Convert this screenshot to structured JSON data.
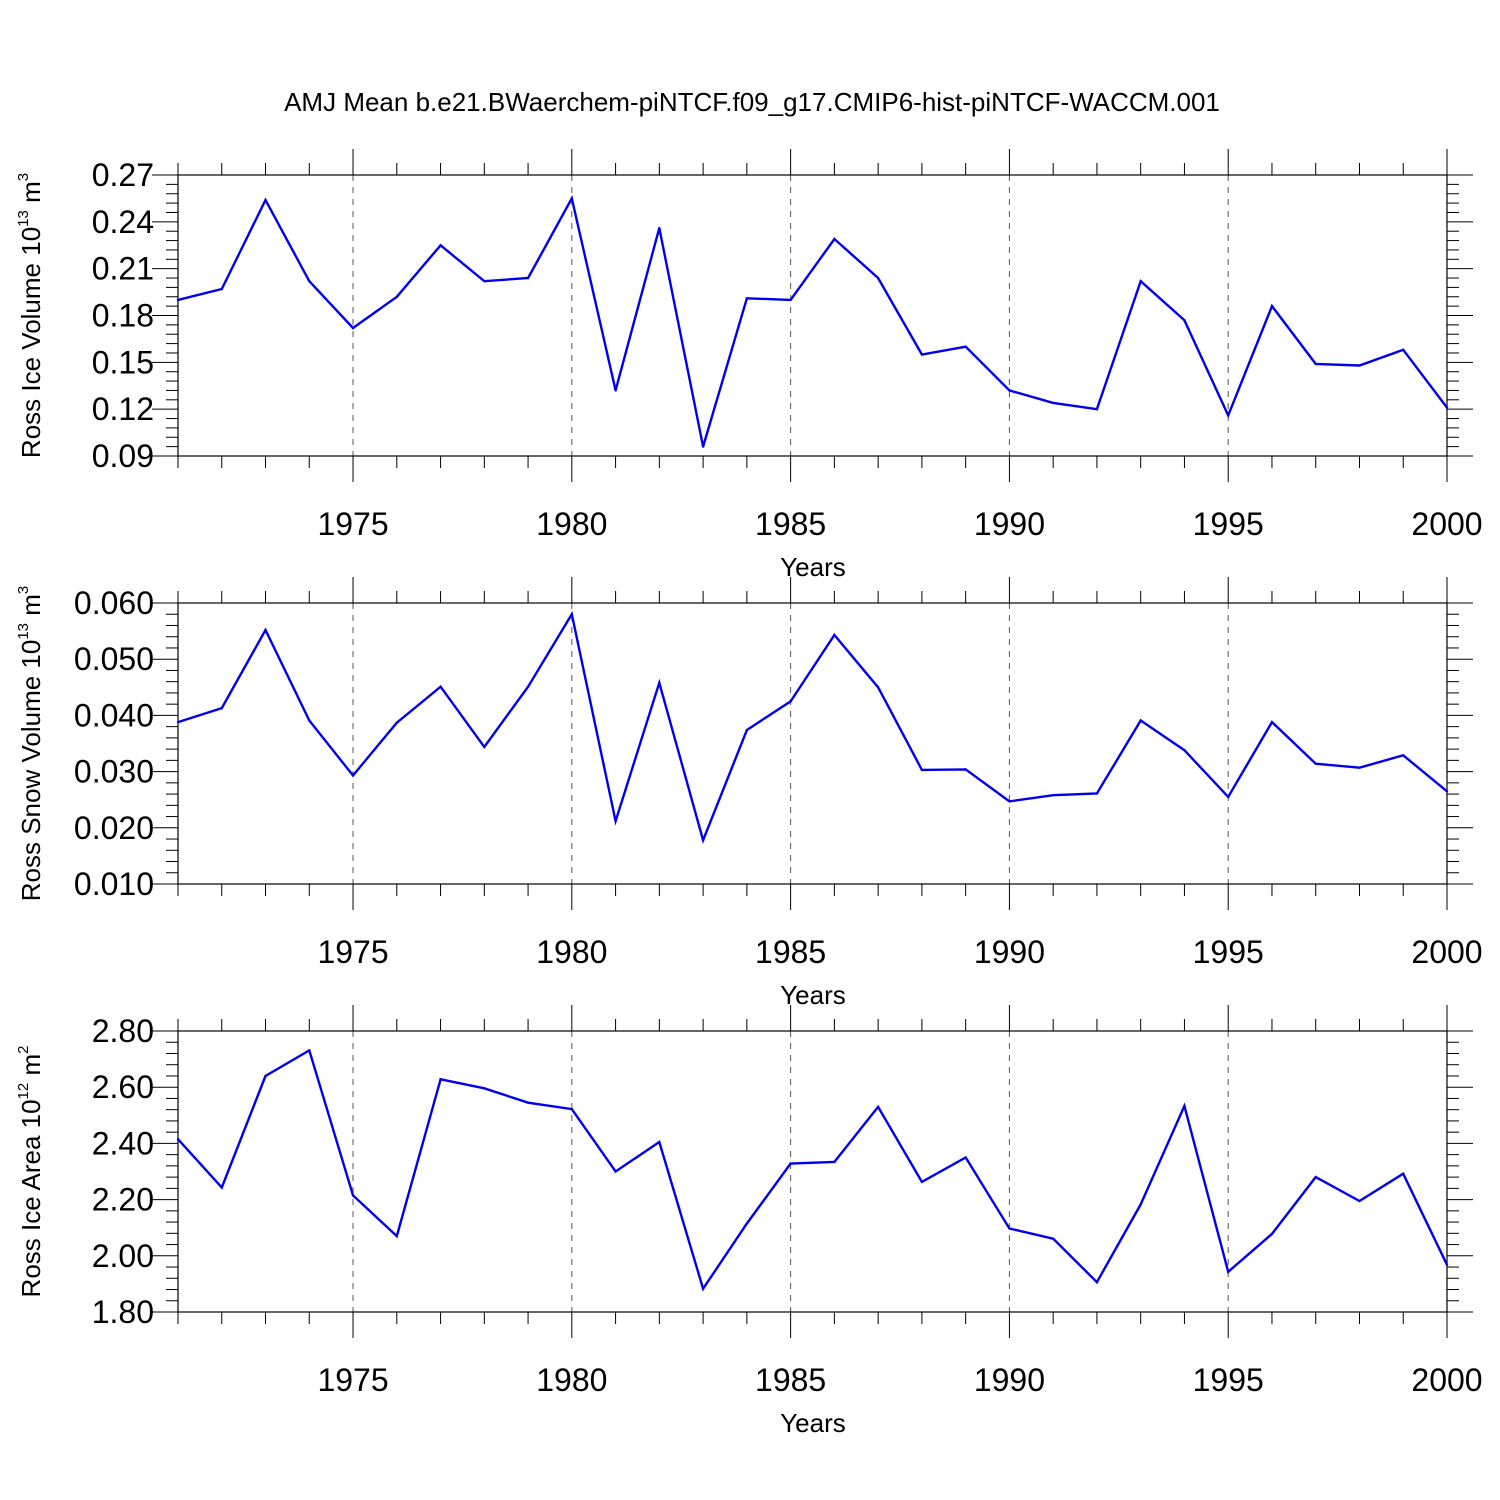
{
  "title": "AMJ Mean b.e21.BWaerchem-piNTCF.f09_g17.CMIP6-hist-piNTCF-WACCM.001",
  "chart_data": [
    {
      "type": "line",
      "title": "",
      "xlabel": "Years",
      "ylabel": {
        "base": "Ross Ice Volume 10",
        "sup1": "13",
        "mid": " m",
        "sup2": "3"
      },
      "xlim": [
        1971,
        2000
      ],
      "ylim": [
        0.09,
        0.27
      ],
      "yticks": [
        "0.09",
        "0.12",
        "0.15",
        "0.18",
        "0.21",
        "0.24",
        "0.27"
      ],
      "xticks": [
        "1975",
        "1980",
        "1985",
        "1990",
        "1995",
        "2000"
      ],
      "grid": "vertical dashed at major x ticks",
      "line_color": "#0000ee",
      "x": [
        1971,
        1972,
        1973,
        1974,
        1975,
        1976,
        1977,
        1978,
        1979,
        1980,
        1981,
        1982,
        1983,
        1984,
        1985,
        1986,
        1987,
        1988,
        1989,
        1990,
        1991,
        1992,
        1993,
        1994,
        1995,
        1996,
        1997,
        1998,
        1999,
        2000
      ],
      "values": [
        0.19,
        0.197,
        0.254,
        0.202,
        0.172,
        0.192,
        0.225,
        0.202,
        0.204,
        0.255,
        0.132,
        0.236,
        0.096,
        0.191,
        0.19,
        0.229,
        0.204,
        0.155,
        0.16,
        0.132,
        0.124,
        0.12,
        0.202,
        0.177,
        0.116,
        0.186,
        0.149,
        0.148,
        0.158,
        0.121
      ]
    },
    {
      "type": "line",
      "title": "",
      "xlabel": "Years",
      "ylabel": {
        "base": "Ross Snow Volume 10",
        "sup1": "13",
        "mid": " m",
        "sup2": "3"
      },
      "xlim": [
        1971,
        2000
      ],
      "ylim": [
        0.01,
        0.06
      ],
      "yticks": [
        "0.010",
        "0.020",
        "0.030",
        "0.040",
        "0.050",
        "0.060"
      ],
      "xticks": [
        "1975",
        "1980",
        "1985",
        "1990",
        "1995",
        "2000"
      ],
      "grid": "vertical dashed at major x ticks",
      "line_color": "#0000ee",
      "x": [
        1971,
        1972,
        1973,
        1974,
        1975,
        1976,
        1977,
        1978,
        1979,
        1980,
        1981,
        1982,
        1983,
        1984,
        1985,
        1986,
        1987,
        1988,
        1989,
        1990,
        1991,
        1992,
        1993,
        1994,
        1995,
        1996,
        1997,
        1998,
        1999,
        2000
      ],
      "values": [
        0.0388,
        0.0413,
        0.0552,
        0.0391,
        0.0293,
        0.0387,
        0.0451,
        0.0344,
        0.0451,
        0.058,
        0.0212,
        0.0458,
        0.0178,
        0.0374,
        0.0425,
        0.0543,
        0.045,
        0.0303,
        0.0304,
        0.0247,
        0.0258,
        0.0261,
        0.0391,
        0.0338,
        0.0255,
        0.0388,
        0.0314,
        0.0307,
        0.0329,
        0.0265
      ]
    },
    {
      "type": "line",
      "title": "",
      "xlabel": "Years",
      "ylabel": {
        "base": "Ross Ice Area 10",
        "sup1": "12",
        "mid": " m",
        "sup2": "2"
      },
      "xlim": [
        1971,
        2000
      ],
      "ylim": [
        1.8,
        2.8
      ],
      "yticks": [
        "1.80",
        "2.00",
        "2.20",
        "2.40",
        "2.60",
        "2.80"
      ],
      "xticks": [
        "1975",
        "1980",
        "1985",
        "1990",
        "1995",
        "2000"
      ],
      "grid": "vertical dashed at major x ticks",
      "line_color": "#0000ee",
      "x": [
        1971,
        1972,
        1973,
        1974,
        1975,
        1976,
        1977,
        1978,
        1979,
        1980,
        1981,
        1982,
        1983,
        1984,
        1985,
        1986,
        1987,
        1988,
        1989,
        1990,
        1991,
        1992,
        1993,
        1994,
        1995,
        1996,
        1997,
        1998,
        1999,
        2000
      ],
      "values": [
        2.415,
        2.243,
        2.64,
        2.731,
        2.215,
        2.07,
        2.628,
        2.596,
        2.545,
        2.522,
        2.3,
        2.405,
        1.883,
        2.115,
        2.328,
        2.334,
        2.53,
        2.263,
        2.35,
        2.097,
        2.061,
        1.906,
        2.183,
        2.533,
        1.943,
        2.078,
        2.28,
        2.195,
        2.292,
        1.968
      ]
    }
  ]
}
